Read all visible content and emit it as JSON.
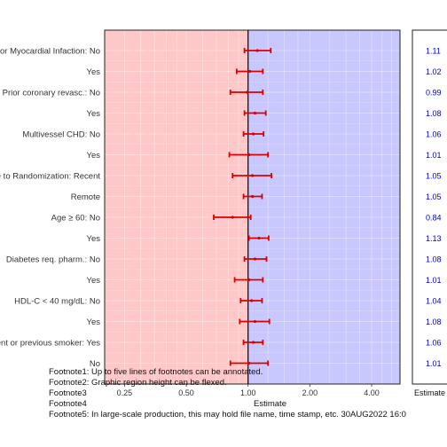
{
  "chart_data": {
    "type": "scatter",
    "subtype": "forest-plot",
    "x_scale": "log",
    "xlabel": "Estimate",
    "xlim": [
      0.2,
      5.5
    ],
    "x_ticks": [
      0.25,
      0.5,
      1.0,
      2.0,
      4.0
    ],
    "x_tick_labels": [
      "0.25",
      "0.50",
      "1.00",
      "2.00",
      "4.00"
    ],
    "reference_line": 1.0,
    "grid": true,
    "left_region_color": "#ffc8c8",
    "right_region_color": "#c8c8ff",
    "point_color": "#dd0000",
    "side_table_text_color": "#0000dd",
    "side_table_header": "Estimate",
    "rows": [
      {
        "label": "Prior Myocardial Infaction: No",
        "estimate": 1.11,
        "lower": 0.96,
        "upper": 1.29,
        "value_text": "1.11"
      },
      {
        "label": "Yes",
        "estimate": 1.02,
        "lower": 0.88,
        "upper": 1.18,
        "value_text": "1.02"
      },
      {
        "label": "Prior coronary revasc.: No",
        "estimate": 0.99,
        "lower": 0.82,
        "upper": 1.18,
        "value_text": "0.99"
      },
      {
        "label": "Yes",
        "estimate": 1.08,
        "lower": 0.96,
        "upper": 1.22,
        "value_text": "1.08"
      },
      {
        "label": "Multivessel CHD: No",
        "estimate": 1.06,
        "lower": 0.95,
        "upper": 1.19,
        "value_text": "1.06"
      },
      {
        "label": "Yes",
        "estimate": 1.01,
        "lower": 0.81,
        "upper": 1.25,
        "value_text": "1.01"
      },
      {
        "label": "Time to Randomization: Recent",
        "estimate": 1.05,
        "lower": 0.84,
        "upper": 1.3,
        "value_text": "1.05"
      },
      {
        "label": "Remote",
        "estimate": 1.05,
        "lower": 0.95,
        "upper": 1.17,
        "value_text": "1.05"
      },
      {
        "label": "Age ≥ 60: No",
        "estimate": 0.84,
        "lower": 0.68,
        "upper": 1.03,
        "value_text": "0.84"
      },
      {
        "label": "Yes",
        "estimate": 1.13,
        "lower": 1.01,
        "upper": 1.26,
        "value_text": "1.13"
      },
      {
        "label": "Diabetes req. pharm.: No",
        "estimate": 1.08,
        "lower": 0.96,
        "upper": 1.23,
        "value_text": "1.08"
      },
      {
        "label": "Yes",
        "estimate": 1.01,
        "lower": 0.86,
        "upper": 1.18,
        "value_text": "1.01"
      },
      {
        "label": "HDL-C < 40 mg/dL: No",
        "estimate": 1.04,
        "lower": 0.92,
        "upper": 1.17,
        "value_text": "1.04"
      },
      {
        "label": "Yes",
        "estimate": 1.08,
        "lower": 0.91,
        "upper": 1.27,
        "value_text": "1.08"
      },
      {
        "label": "Current or previous smoker: Yes",
        "estimate": 1.06,
        "lower": 0.95,
        "upper": 1.18,
        "value_text": "1.06"
      },
      {
        "label": "No",
        "estimate": 1.01,
        "lower": 0.82,
        "upper": 1.25,
        "value_text": "1.01"
      }
    ]
  },
  "footnotes": [
    "Footnote1: Up to five lines of footnotes can be annotated.",
    "Footnote2: Graphic region height can be flexed.",
    "Footnote3",
    "Footnote4",
    "Footnote5: In large-scale production, this may hold file name, time stamp, etc. 30AUG2022 16:0"
  ]
}
